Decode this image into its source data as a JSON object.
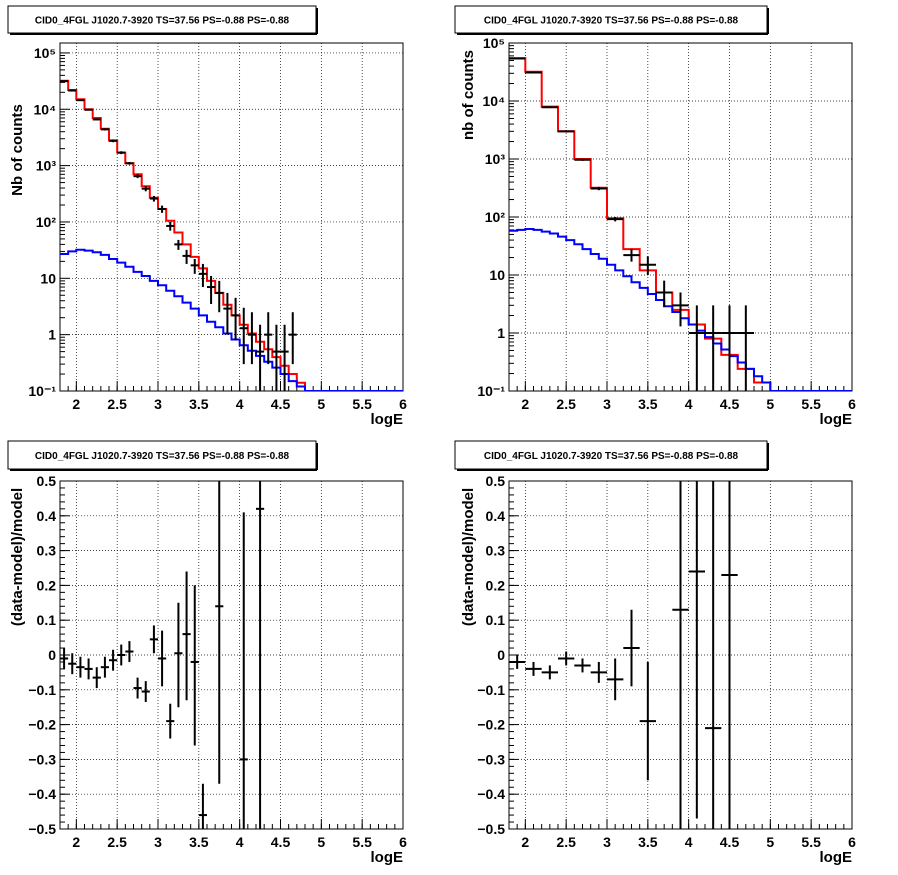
{
  "chart_data": [
    {
      "type": "line",
      "title": "CID0_4FGL J1020.7-3920 TS=37.56 PS=-0.88 PS=-0.88",
      "xlabel": "logE",
      "ylabel": "Nb of counts",
      "xlim": [
        1.8,
        6.0
      ],
      "ylim": [
        0.1,
        150000
      ],
      "yscale": "log",
      "grid": true,
      "x_ticks": [
        "2",
        "2.5",
        "3",
        "3.5",
        "4",
        "4.5",
        "5",
        "5.5",
        "6"
      ],
      "y_ticks": [
        "10^-1",
        "1",
        "10",
        "10^2",
        "10^3",
        "10^4",
        "10^5"
      ],
      "series": [
        {
          "kind": "step",
          "color": "#ff0000",
          "edges": [
            1.8,
            1.9,
            2.0,
            2.1,
            2.2,
            2.3,
            2.4,
            2.5,
            2.6,
            2.7,
            2.8,
            2.9,
            3.0,
            3.1,
            3.2,
            3.3,
            3.4,
            3.5,
            3.6,
            3.7,
            3.8,
            3.9,
            4.0,
            4.1,
            4.2,
            4.3,
            4.4,
            4.5,
            4.6,
            4.7,
            4.8,
            4.9,
            5.0,
            5.1,
            5.2,
            5.3,
            5.4,
            5.5,
            5.6,
            5.7,
            5.8,
            5.9,
            6.0
          ],
          "values": [
            32000,
            22000,
            15000,
            10000,
            7000,
            4500,
            2800,
            1700,
            1100,
            700,
            430,
            270,
            170,
            105,
            65,
            40,
            24,
            15,
            9,
            5.5,
            3.4,
            2.2,
            1.5,
            1.05,
            0.75,
            0.55,
            0.4,
            0.28,
            0.2,
            0.14,
            0.1,
            0.1,
            0.1,
            0.1,
            0.1,
            0.1,
            0.1,
            0.1,
            0.1,
            0.1,
            0.1,
            0.1
          ]
        },
        {
          "kind": "step",
          "color": "#0000ff",
          "edges": [
            1.8,
            1.9,
            2.0,
            2.1,
            2.2,
            2.3,
            2.4,
            2.5,
            2.6,
            2.7,
            2.8,
            2.9,
            3.0,
            3.1,
            3.2,
            3.3,
            3.4,
            3.5,
            3.6,
            3.7,
            3.8,
            3.9,
            4.0,
            4.1,
            4.2,
            4.3,
            4.4,
            4.5,
            4.6,
            4.7,
            4.8,
            4.9,
            5.0,
            5.1,
            5.2,
            5.3,
            5.4,
            5.5,
            5.6,
            5.7,
            5.8,
            5.9,
            6.0
          ],
          "values": [
            27,
            30,
            32,
            31,
            29,
            26,
            22,
            19,
            16,
            13,
            11,
            9,
            7.5,
            6,
            4.8,
            3.7,
            2.9,
            2.2,
            1.7,
            1.35,
            1.05,
            0.82,
            0.65,
            0.52,
            0.42,
            0.33,
            0.26,
            0.2,
            0.15,
            0.12,
            0.1,
            0.1,
            0.1,
            0.1,
            0.1,
            0.1,
            0.1,
            0.1,
            0.1,
            0.1,
            0.1,
            0.1
          ]
        },
        {
          "kind": "points",
          "color": "#000000",
          "x": [
            1.85,
            1.95,
            2.05,
            2.15,
            2.25,
            2.35,
            2.45,
            2.55,
            2.65,
            2.75,
            2.85,
            2.95,
            3.05,
            3.15,
            3.25,
            3.35,
            3.45,
            3.55,
            3.65,
            3.75,
            3.85,
            3.95,
            4.05,
            4.15,
            4.25,
            4.35,
            4.45,
            4.55,
            4.65
          ],
          "y": [
            31500,
            21500,
            14500,
            9800,
            6600,
            4400,
            2750,
            1700,
            1100,
            650,
            390,
            260,
            170,
            85,
            40,
            25,
            17,
            12,
            7,
            5.5,
            2.9,
            2.2,
            1.3,
            1.0,
            0.5,
            1.0,
            0.5,
            0.5,
            1.0
          ],
          "xerr": 0.05,
          "ylow": [
            31300,
            21300,
            14300,
            9600,
            6400,
            4200,
            2600,
            1600,
            1040,
            600,
            350,
            230,
            145,
            70,
            32,
            18,
            12,
            7,
            3.5,
            2.5,
            1.0,
            0.8,
            0.3,
            0.3,
            0.1,
            0.3,
            0.1,
            0.1,
            0.3
          ],
          "yhigh": [
            31700,
            21700,
            14700,
            10000,
            6800,
            4600,
            2900,
            1800,
            1160,
            700,
            430,
            290,
            195,
            100,
            48,
            32,
            22,
            18,
            11,
            9,
            5.5,
            4.5,
            3.0,
            2.5,
            1.5,
            2.5,
            1.5,
            1.5,
            2.5
          ]
        }
      ]
    },
    {
      "type": "line",
      "title": "CID0_4FGL J1020.7-3920 TS=37.56 PS=-0.88 PS=-0.88",
      "xlabel": "logE",
      "ylabel": "nb of counts",
      "xlim": [
        1.8,
        6.0
      ],
      "ylim": [
        0.1,
        100000
      ],
      "yscale": "log",
      "grid": true,
      "x_ticks": [
        "2",
        "2.5",
        "3",
        "3.5",
        "4",
        "4.5",
        "5",
        "5.5",
        "6"
      ],
      "y_ticks": [
        "10^-1",
        "1",
        "10",
        "10^2",
        "10^3",
        "10^4",
        "10^5"
      ],
      "series": [
        {
          "kind": "step",
          "color": "#ff0000",
          "edges": [
            1.8,
            2.0,
            2.2,
            2.4,
            2.6,
            2.8,
            3.0,
            3.2,
            3.4,
            3.6,
            3.8,
            4.0,
            4.2,
            4.4,
            4.6,
            4.8,
            5.0,
            5.2,
            5.4,
            5.6,
            5.8,
            6.0
          ],
          "values": [
            55000,
            32000,
            8000,
            3000,
            1000,
            320,
            95,
            28,
            12,
            5,
            2.5,
            1.4,
            0.8,
            0.42,
            0.24,
            0.14,
            0.1,
            0.1,
            0.1,
            0.1,
            0.1
          ]
        },
        {
          "kind": "step",
          "color": "#0000ff",
          "edges": [
            1.8,
            1.9,
            2.0,
            2.1,
            2.2,
            2.3,
            2.4,
            2.5,
            2.6,
            2.7,
            2.8,
            2.9,
            3.0,
            3.1,
            3.2,
            3.3,
            3.4,
            3.5,
            3.6,
            3.7,
            3.8,
            3.9,
            4.0,
            4.1,
            4.2,
            4.3,
            4.4,
            4.5,
            4.6,
            4.7,
            4.8,
            4.9,
            5.0,
            5.1,
            5.2,
            5.3,
            5.4,
            5.5,
            5.6,
            5.7,
            5.8,
            5.9,
            6.0
          ],
          "values": [
            58,
            60,
            62,
            60,
            56,
            52,
            46,
            40,
            34,
            28,
            23,
            19,
            15,
            12,
            9.5,
            7.5,
            6,
            4.7,
            3.7,
            2.9,
            2.3,
            1.8,
            1.4,
            1.1,
            0.85,
            0.66,
            0.52,
            0.4,
            0.31,
            0.24,
            0.18,
            0.14,
            0.1,
            0.1,
            0.1,
            0.1,
            0.1,
            0.1,
            0.1,
            0.1,
            0.1,
            0.1
          ]
        },
        {
          "kind": "points",
          "color": "#000000",
          "x": [
            1.9,
            2.1,
            2.3,
            2.5,
            2.7,
            2.9,
            3.1,
            3.3,
            3.5,
            3.7,
            3.9,
            4.1,
            4.3,
            4.5,
            4.7
          ],
          "y": [
            54000,
            31000,
            7800,
            3000,
            970,
            310,
            92,
            22,
            15,
            5,
            3,
            1,
            1,
            1,
            1
          ],
          "xerr": 0.1,
          "ylow": [
            53500,
            30700,
            7650,
            2900,
            930,
            290,
            84,
            17,
            10,
            2.8,
            1.3,
            0.1,
            0.1,
            0.1,
            0.1
          ],
          "yhigh": [
            54500,
            31300,
            7950,
            3100,
            1010,
            330,
            100,
            28,
            21,
            8,
            5,
            3,
            3,
            3,
            3
          ]
        }
      ]
    },
    {
      "type": "scatter",
      "title": "CID0_4FGL J1020.7-3920 TS=37.56 PS=-0.88 PS=-0.88",
      "xlabel": "logE",
      "ylabel": "(data-model)/model",
      "xlim": [
        1.8,
        6.0
      ],
      "ylim": [
        -0.5,
        0.5
      ],
      "grid": true,
      "x_ticks": [
        "2",
        "2.5",
        "3",
        "3.5",
        "4",
        "4.5",
        "5",
        "5.5",
        "6"
      ],
      "y_ticks": [
        "-0.5",
        "-0.4",
        "-0.3",
        "-0.2",
        "-0.1",
        "0",
        "0.1",
        "0.2",
        "0.3",
        "0.4",
        "0.5"
      ],
      "series": [
        {
          "kind": "points",
          "color": "#000000",
          "x": [
            1.85,
            1.95,
            2.05,
            2.15,
            2.25,
            2.35,
            2.45,
            2.55,
            2.65,
            2.75,
            2.85,
            2.95,
            3.05,
            3.15,
            3.25,
            3.35,
            3.45,
            3.55,
            3.75,
            4.05,
            4.25
          ],
          "y": [
            -0.01,
            -0.025,
            -0.035,
            -0.04,
            -0.065,
            -0.035,
            -0.015,
            0.0,
            0.01,
            -0.095,
            -0.105,
            0.045,
            -0.01,
            -0.19,
            0.005,
            0.06,
            -0.02,
            -0.46,
            0.14,
            -0.3,
            0.42
          ],
          "xerr": 0.05,
          "ylow": [
            -0.04,
            -0.055,
            -0.065,
            -0.07,
            -0.095,
            -0.065,
            -0.045,
            -0.03,
            -0.02,
            -0.125,
            -0.135,
            0.005,
            -0.09,
            -0.24,
            -0.15,
            -0.13,
            -0.26,
            -0.5,
            -0.37,
            -0.5,
            -0.5
          ],
          "yhigh": [
            0.02,
            0.005,
            -0.005,
            -0.01,
            -0.035,
            -0.005,
            0.015,
            0.03,
            0.04,
            -0.065,
            -0.075,
            0.085,
            0.07,
            -0.14,
            0.15,
            0.24,
            0.2,
            -0.37,
            0.5,
            0.41,
            0.5
          ]
        }
      ]
    },
    {
      "type": "scatter",
      "title": "CID0_4FGL J1020.7-3920 TS=37.56 PS=-0.88 PS=-0.88",
      "xlabel": "logE",
      "ylabel": "(data-model)/model",
      "xlim": [
        1.8,
        6.0
      ],
      "ylim": [
        -0.5,
        0.5
      ],
      "grid": true,
      "x_ticks": [
        "2",
        "2.5",
        "3",
        "3.5",
        "4",
        "4.5",
        "5",
        "5.5",
        "6"
      ],
      "y_ticks": [
        "-0.5",
        "-0.4",
        "-0.3",
        "-0.2",
        "-0.1",
        "0",
        "0.1",
        "0.2",
        "0.3",
        "0.4",
        "0.5"
      ],
      "series": [
        {
          "kind": "points",
          "color": "#000000",
          "x": [
            1.9,
            2.1,
            2.3,
            2.5,
            2.7,
            2.9,
            3.1,
            3.3,
            3.5,
            3.9,
            4.1,
            4.3,
            4.5
          ],
          "y": [
            -0.02,
            -0.04,
            -0.05,
            -0.01,
            -0.03,
            -0.05,
            -0.07,
            0.02,
            -0.19,
            0.13,
            0.24,
            -0.21,
            0.23
          ],
          "xerr": 0.1,
          "ylow": [
            -0.04,
            -0.06,
            -0.07,
            -0.03,
            -0.05,
            -0.08,
            -0.13,
            -0.09,
            -0.36,
            -0.5,
            -0.47,
            -0.5,
            -0.5
          ],
          "yhigh": [
            0.0,
            -0.02,
            -0.03,
            0.01,
            -0.01,
            -0.02,
            -0.01,
            0.13,
            -0.02,
            0.5,
            0.5,
            0.5,
            0.5
          ]
        }
      ]
    }
  ]
}
